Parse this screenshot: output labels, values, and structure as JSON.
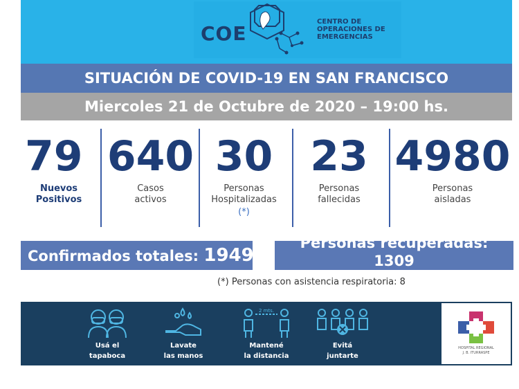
{
  "header": {
    "logo_acronym": "COE",
    "logo_lines": [
      "CENTRO DE",
      "OPERACIONES DE",
      "EMERGENCIAS"
    ],
    "emblem_icon": "circuit-map-icon"
  },
  "title": "SITUACIÓN DE COVID-19 EN SAN FRANCISCO",
  "date": "Miercoles 21 de Octubre de 2020 – 19:00 hs.",
  "stats": [
    {
      "value": "79",
      "label_lines": [
        "Nuevos",
        "Positivos"
      ]
    },
    {
      "value": "640",
      "label_lines": [
        "Casos",
        "activos"
      ]
    },
    {
      "value": "30",
      "label_lines": [
        "Personas",
        "Hospitalizadas"
      ],
      "note": "(*)"
    },
    {
      "value": "23",
      "label_lines": [
        "Personas",
        "fallecidas"
      ]
    },
    {
      "value": "4980",
      "label_lines": [
        "Personas",
        "aisladas"
      ]
    }
  ],
  "totals": {
    "confirmed_label": "Confirmados totales:",
    "confirmed_value": "1949",
    "recovered_label": "Personas recuperadas:",
    "recovered_value": "1309"
  },
  "footnote": "(*) Personas con asistencia respiratoria: 8",
  "tips": [
    {
      "icon": "face-mask-icon",
      "lines": [
        "Usá el",
        "tapaboca"
      ]
    },
    {
      "icon": "hand-wash-icon",
      "lines": [
        "Lavate",
        "las manos"
      ]
    },
    {
      "icon": "social-distance-icon",
      "distance": "2 mts.",
      "lines": [
        "Mantené",
        "la distancia"
      ]
    },
    {
      "icon": "no-gathering-icon",
      "lines": [
        "Evitá",
        "juntarte"
      ]
    }
  ],
  "hospital": {
    "icon": "hospital-cross-icon",
    "lines": [
      "HOSPITAL REGIONAL",
      "J. B. ITURRASPE"
    ]
  },
  "colors": {
    "header_bg": "#29b2e8",
    "title_bar": "#5577b3",
    "date_bar": "#a5a5a5",
    "stat_number": "#1e3d77",
    "tips_bg": "#1a3f5f"
  }
}
